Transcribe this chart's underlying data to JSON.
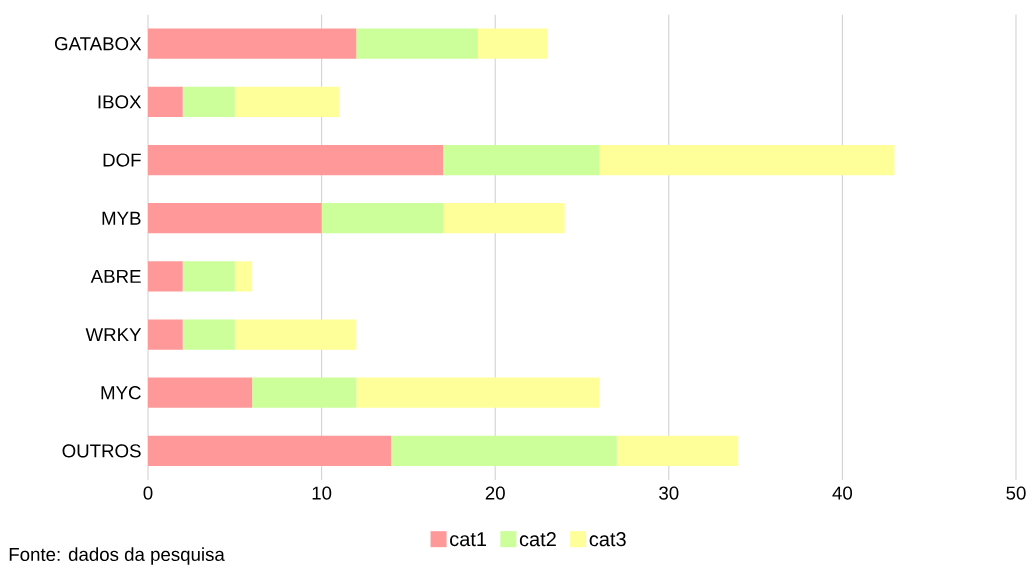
{
  "chart_data": {
    "type": "bar",
    "orientation": "horizontal",
    "stacked": true,
    "categories": [
      "GATABOX",
      "IBOX",
      "DOF",
      "MYB",
      "ABRE",
      "WRKY",
      "MYC",
      "OUTROS"
    ],
    "series": [
      {
        "name": "cat1",
        "color": "#ff9999",
        "values": [
          12,
          2,
          17,
          10,
          2,
          2,
          6,
          14
        ]
      },
      {
        "name": "cat2",
        "color": "#ccff99",
        "values": [
          7,
          3,
          9,
          7,
          3,
          3,
          6,
          13
        ]
      },
      {
        "name": "cat3",
        "color": "#ffff99",
        "values": [
          4,
          6,
          17,
          7,
          1,
          7,
          14,
          7
        ]
      }
    ],
    "xlim": [
      0,
      50
    ],
    "xticks": [
      0,
      10,
      20,
      30,
      40,
      50
    ],
    "grid": "x",
    "legend": "bottom",
    "annotations": [
      "Fonte: dados da pesquisa"
    ]
  }
}
